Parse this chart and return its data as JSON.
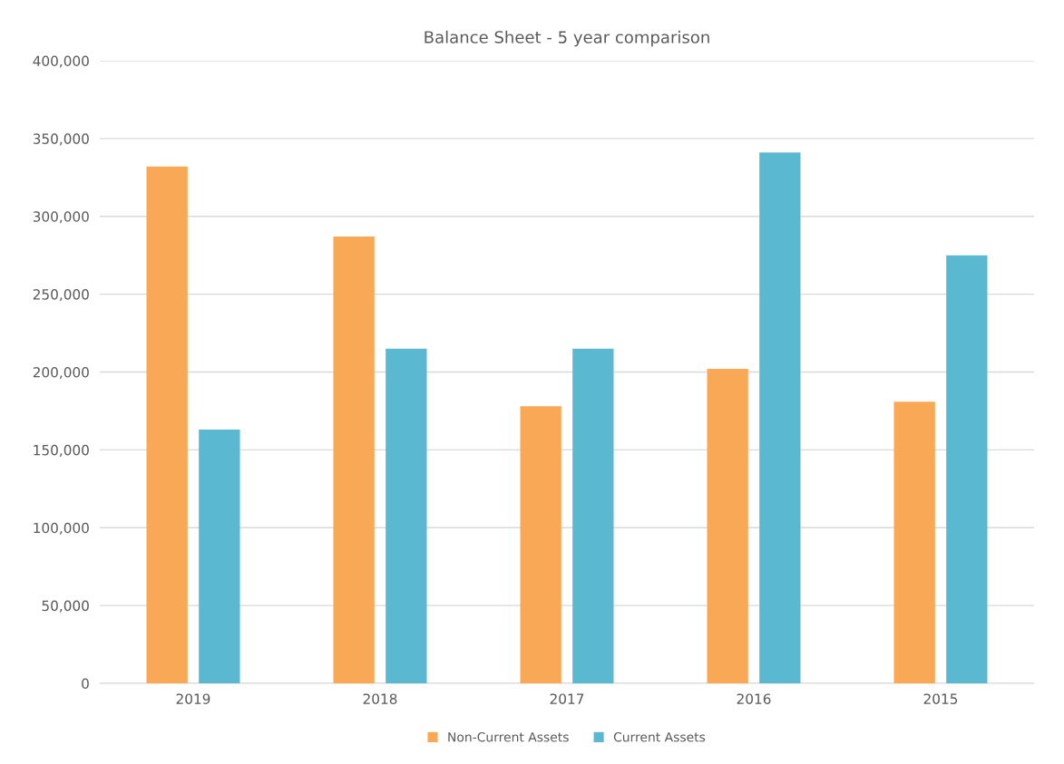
{
  "chart_data": {
    "type": "bar",
    "title": "Balance Sheet - 5 year comparison",
    "categories": [
      "2019",
      "2018",
      "2017",
      "2016",
      "2015"
    ],
    "series": [
      {
        "name": "Non-Current Assets",
        "color": "#f9a856",
        "values": [
          332000,
          287000,
          178000,
          202000,
          181000
        ]
      },
      {
        "name": "Current Assets",
        "color": "#5bb8d1",
        "values": [
          163000,
          215000,
          215000,
          341000,
          275000
        ]
      }
    ],
    "ylim": [
      0,
      400000
    ],
    "yticks": [
      0,
      {
        "value": 50000,
        "label": "50,000"
      },
      {
        "value": 100000,
        "label": "100,000"
      },
      {
        "value": 150000,
        "label": "150,000"
      },
      {
        "value": 200000,
        "label": "200,000"
      },
      {
        "value": 250000,
        "label": "250,000"
      },
      {
        "value": 300000,
        "label": "300,000"
      },
      {
        "value": 350000,
        "label": "350,000"
      },
      {
        "value": 400000,
        "label": "400,000"
      }
    ],
    "grid": "y",
    "legend": "bottom"
  }
}
